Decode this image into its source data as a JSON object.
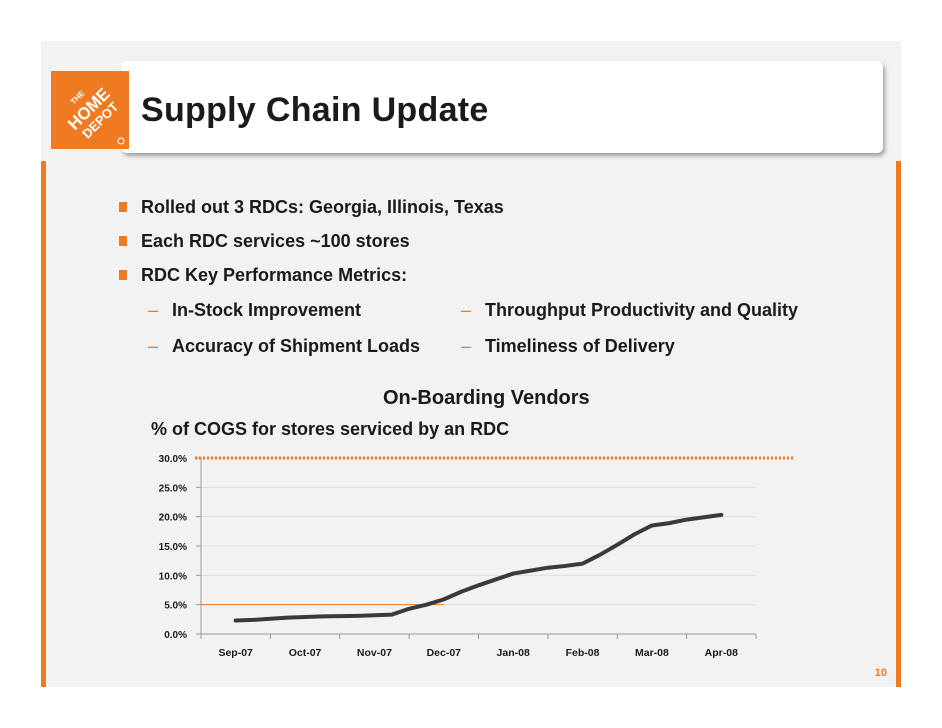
{
  "slide": {
    "title": "Supply Chain Update",
    "page_number": "10",
    "brand_colors": {
      "accent": "#f07a21",
      "dash_line": "#f07a21"
    }
  },
  "logo": {
    "line1": "THE",
    "line2": "HOME",
    "line3": "DEPOT",
    "icon_name": "home-depot-logo-icon"
  },
  "bullets": [
    {
      "text": "Rolled out 3 RDCs: Georgia, Illinois, Texas"
    },
    {
      "text": "Each RDC services ~100 stores"
    },
    {
      "text": "RDC Key Performance Metrics:"
    }
  ],
  "metrics": [
    {
      "text": "In-Stock Improvement"
    },
    {
      "text": "Throughput Productivity and Quality"
    },
    {
      "text": "Accuracy of Shipment Loads"
    },
    {
      "text": "Timeliness of Delivery"
    }
  ],
  "chart_title": "On-Boarding Vendors",
  "chart_subtitle": "% of COGS for stores serviced by an RDC",
  "chart_data": {
    "type": "line",
    "title": "On-Boarding Vendors",
    "subtitle": "% of COGS for stores serviced by an RDC",
    "categories": [
      "Sep-07",
      "Oct-07",
      "Nov-07",
      "Dec-07",
      "Jan-08",
      "Feb-08",
      "Mar-08",
      "Apr-08"
    ],
    "x": [
      0,
      0.25,
      0.5,
      0.75,
      1,
      1.25,
      1.5,
      1.75,
      2,
      2.25,
      2.5,
      2.75,
      3,
      3.25,
      3.5,
      3.75,
      4,
      4.25,
      4.5,
      4.75,
      5,
      5.25,
      5.5,
      5.75,
      6,
      6.25,
      6.5,
      6.75,
      7
    ],
    "series": [
      {
        "values": [
          2.3,
          2.4,
          2.6,
          2.8,
          2.9,
          3.0,
          3.05,
          3.1,
          3.2,
          3.3,
          4.3,
          5.0,
          5.9,
          7.2,
          8.3,
          9.3,
          10.3,
          10.8,
          11.3,
          11.6,
          12.0,
          13.5,
          15.2,
          17.0,
          18.5,
          18.9,
          19.5,
          19.9,
          20.3
        ]
      }
    ],
    "target_line": 30.0,
    "y_ticks": [
      "0.0%",
      "5.0%",
      "10.0%",
      "15.0%",
      "20.0%",
      "25.0%",
      "30.0%"
    ],
    "ylim": [
      0,
      30
    ],
    "grid": true
  }
}
